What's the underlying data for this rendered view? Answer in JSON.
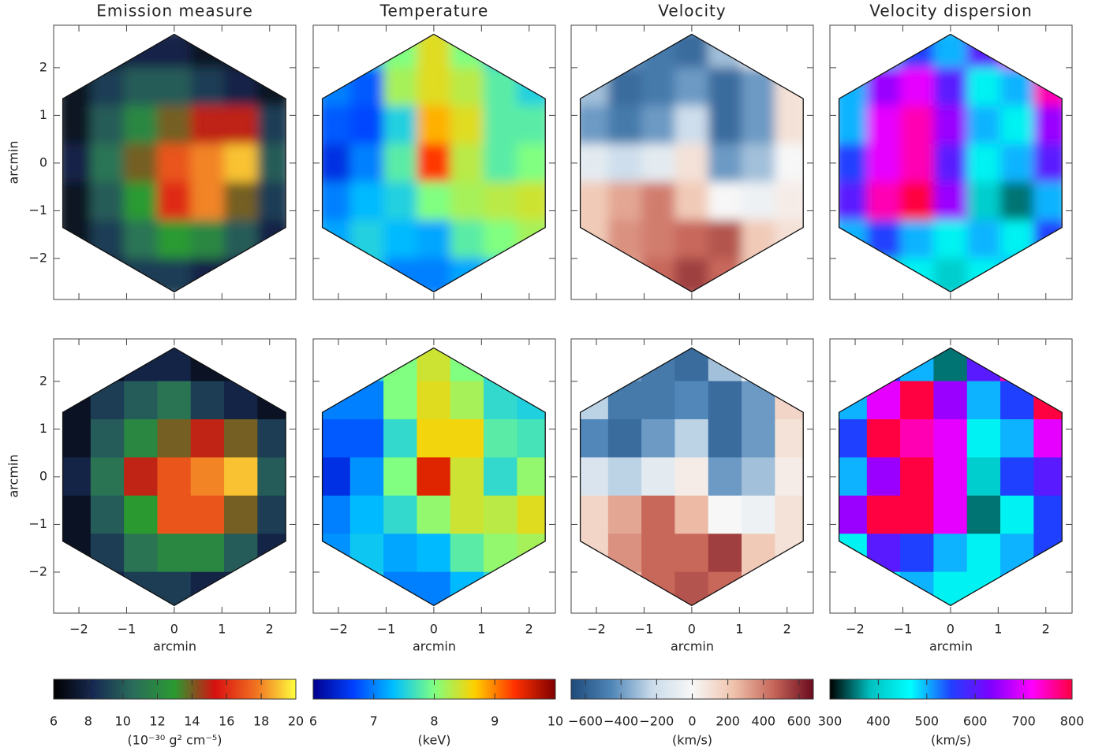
{
  "chart_data": [
    {
      "type": "heatmap",
      "title": "Emission measure",
      "ylabel": "arcmin",
      "interpolation": "smooth",
      "xticklabels": false,
      "yticklabels": true,
      "xlim": [
        -2.53,
        2.55
      ],
      "ylim": [
        -2.86,
        2.89
      ],
      "xticks": [
        {
          "value": -2,
          "label": "−2"
        },
        {
          "value": -1,
          "label": "−1"
        },
        0,
        1,
        2
      ],
      "yticks": [
        {
          "value": -2,
          "label": "−2"
        },
        {
          "value": -1,
          "label": "−1"
        },
        0,
        1,
        2
      ],
      "zlim": [
        6,
        20
      ],
      "colors": [
        "#000000",
        "#172a52",
        "#2a6e5a",
        "#2a9a30",
        "#d81010",
        "#f07020",
        "#ffff40"
      ],
      "x": [
        -2.1,
        -1.4,
        -0.7,
        0,
        0.7,
        1.4,
        2.1
      ],
      "y": [
        2.4,
        1.6,
        0.8,
        0,
        -0.8,
        -1.6,
        -2.4
      ],
      "z": [
        [
          7,
          7,
          8,
          8,
          7,
          7,
          7
        ],
        [
          7,
          9,
          10,
          10,
          9,
          8,
          7
        ],
        [
          7,
          10,
          12,
          14,
          15,
          15,
          9
        ],
        [
          8,
          11,
          14,
          17,
          18,
          19,
          10
        ],
        [
          7,
          10,
          13,
          16,
          18,
          14,
          9
        ],
        [
          7,
          9,
          11,
          13,
          12,
          10,
          8
        ],
        [
          7,
          8,
          9,
          9,
          8,
          8,
          7
        ]
      ]
    },
    {
      "type": "heatmap",
      "title": "Temperature",
      "interpolation": "smooth",
      "xticklabels": false,
      "yticklabels": false,
      "xlim": [
        -2.53,
        2.55
      ],
      "ylim": [
        -2.86,
        2.89
      ],
      "xticks": [
        {
          "value": -2,
          "label": "−2"
        },
        {
          "value": -1,
          "label": "−1"
        },
        0,
        1,
        2
      ],
      "yticks": [
        {
          "value": -2,
          "label": "−2"
        },
        {
          "value": -1,
          "label": "−1"
        },
        0,
        1,
        2
      ],
      "zlim": [
        6,
        10
      ],
      "colors": [
        "#00008f",
        "#0040ff",
        "#00c0ff",
        "#80ff80",
        "#ffd000",
        "#ff3000",
        "#800000"
      ],
      "x": [
        -2.1,
        -1.4,
        -0.7,
        0,
        0.7,
        1.4,
        2.1
      ],
      "y": [
        2.4,
        1.6,
        0.8,
        0,
        -0.8,
        -1.6,
        -2.4
      ],
      "z": [
        [
          7,
          7.5,
          8,
          8.5,
          8,
          7.5,
          7
        ],
        [
          7,
          6.8,
          8.2,
          8.5,
          8.3,
          7.8,
          7.5
        ],
        [
          6.8,
          6.7,
          7.5,
          8.8,
          8.5,
          7.8,
          7.8
        ],
        [
          6.5,
          7,
          7.8,
          9.3,
          8.3,
          7.8,
          8
        ],
        [
          7,
          7.3,
          7.5,
          8,
          8.2,
          8.3,
          8.4
        ],
        [
          7.2,
          7.5,
          7.3,
          7.2,
          7.8,
          8,
          8.2
        ],
        [
          7.5,
          7.5,
          7,
          7,
          7.2,
          7.5,
          8
        ]
      ]
    },
    {
      "type": "heatmap",
      "title": "Velocity",
      "interpolation": "smooth",
      "xticklabels": false,
      "yticklabels": false,
      "xlim": [
        -2.53,
        2.55
      ],
      "ylim": [
        -2.86,
        2.89
      ],
      "xticks": [
        {
          "value": -2,
          "label": "−2"
        },
        {
          "value": -1,
          "label": "−1"
        },
        0,
        1,
        2
      ],
      "yticks": [
        {
          "value": -2,
          "label": "−2"
        },
        {
          "value": -1,
          "label": "−1"
        },
        0,
        1,
        2
      ],
      "zlim": [
        -680,
        680
      ],
      "colors": [
        "#1d4a7a",
        "#4f86b8",
        "#c9dbea",
        "#f7f7f7",
        "#f0c4ae",
        "#c7675a",
        "#6a0a1e"
      ],
      "x": [
        -2.1,
        -1.4,
        -0.7,
        0,
        0.7,
        1.4,
        2.1
      ],
      "y": [
        2.4,
        1.6,
        0.8,
        0,
        -0.8,
        -1.6,
        -2.4
      ],
      "z": [
        [
          -300,
          -400,
          -500,
          -550,
          -300,
          0,
          100
        ],
        [
          -300,
          -550,
          -500,
          -400,
          -550,
          -400,
          100
        ],
        [
          -400,
          -500,
          -400,
          -200,
          -550,
          -400,
          100
        ],
        [
          -100,
          -200,
          -100,
          100,
          -400,
          -300,
          0
        ],
        [
          200,
          300,
          400,
          200,
          0,
          -50,
          50
        ],
        [
          200,
          350,
          400,
          450,
          500,
          200,
          100
        ],
        [
          100,
          300,
          450,
          550,
          450,
          200,
          100
        ]
      ]
    },
    {
      "type": "heatmap",
      "title": "Velocity dispersion",
      "interpolation": "smooth",
      "xticklabels": false,
      "yticklabels": false,
      "xlim": [
        -2.53,
        2.55
      ],
      "ylim": [
        -2.86,
        2.89
      ],
      "xticks": [
        {
          "value": -2,
          "label": "−2"
        },
        {
          "value": -1,
          "label": "−1"
        },
        0,
        1,
        2
      ],
      "yticks": [
        {
          "value": -2,
          "label": "−2"
        },
        {
          "value": -1,
          "label": "−1"
        },
        0,
        1,
        2
      ],
      "zlim": [
        300,
        800
      ],
      "colors": [
        "#000000",
        "#00c0c0",
        "#00ffff",
        "#2040ff",
        "#8000ff",
        "#ff00ff",
        "#ff0040"
      ],
      "x": [
        -2.1,
        -1.4,
        -0.7,
        0,
        0.7,
        1.4,
        2.1
      ],
      "y": [
        2.4,
        1.6,
        0.8,
        0,
        -0.8,
        -1.6,
        -2.4
      ],
      "z": [
        [
          450,
          500,
          550,
          500,
          600,
          700,
          650
        ],
        [
          500,
          650,
          700,
          600,
          450,
          500,
          750
        ],
        [
          500,
          700,
          750,
          650,
          500,
          450,
          650
        ],
        [
          550,
          700,
          750,
          600,
          450,
          500,
          600
        ],
        [
          600,
          750,
          800,
          650,
          400,
          350,
          500
        ],
        [
          500,
          550,
          500,
          450,
          500,
          450,
          550
        ],
        [
          450,
          400,
          450,
          400,
          450,
          500,
          500
        ]
      ]
    },
    {
      "type": "heatmap",
      "xlabel": "arcmin",
      "ylabel": "arcmin",
      "interpolation": "nearest",
      "xticklabels": true,
      "yticklabels": true,
      "xlim": [
        -2.53,
        2.55
      ],
      "ylim": [
        -2.86,
        2.89
      ],
      "xticks": [
        {
          "value": -2,
          "label": "−2"
        },
        {
          "value": -1,
          "label": "−1"
        },
        0,
        1,
        2
      ],
      "yticks": [
        {
          "value": -2,
          "label": "−2"
        },
        {
          "value": -1,
          "label": "−1"
        },
        0,
        1,
        2
      ],
      "zlim": [
        6,
        20
      ],
      "colors": [
        "#000000",
        "#172a52",
        "#2a6e5a",
        "#2a9a30",
        "#d81010",
        "#f07020",
        "#ffff40"
      ],
      "x": [
        -2.1,
        -1.4,
        -0.7,
        0,
        0.7,
        1.4,
        2.1
      ],
      "y": [
        2.4,
        1.6,
        0.8,
        0,
        -0.8,
        -1.6,
        -2.4
      ],
      "z": [
        [
          7,
          7,
          8,
          8,
          7,
          7,
          7
        ],
        [
          7,
          9,
          10,
          11,
          9,
          8,
          7
        ],
        [
          7,
          10,
          12,
          14,
          15,
          14,
          9
        ],
        [
          8,
          11,
          15,
          17,
          18,
          19,
          10
        ],
        [
          7,
          10,
          13,
          17,
          17,
          14,
          9
        ],
        [
          7,
          9,
          11,
          12,
          12,
          10,
          8
        ],
        [
          7,
          8,
          9,
          9,
          8,
          8,
          7
        ]
      ]
    },
    {
      "type": "heatmap",
      "xlabel": "arcmin",
      "interpolation": "nearest",
      "xticklabels": true,
      "yticklabels": false,
      "xlim": [
        -2.53,
        2.55
      ],
      "ylim": [
        -2.86,
        2.89
      ],
      "xticks": [
        {
          "value": -2,
          "label": "−2"
        },
        {
          "value": -1,
          "label": "−1"
        },
        0,
        1,
        2
      ],
      "yticks": [
        {
          "value": -2,
          "label": "−2"
        },
        {
          "value": -1,
          "label": "−1"
        },
        0,
        1,
        2
      ],
      "zlim": [
        6,
        10
      ],
      "colors": [
        "#00008f",
        "#0040ff",
        "#00c0ff",
        "#80ff80",
        "#ffd000",
        "#ff3000",
        "#800000"
      ],
      "x": [
        -2.1,
        -1.4,
        -0.7,
        0,
        0.7,
        1.4,
        2.1
      ],
      "y": [
        2.4,
        1.6,
        0.8,
        0,
        -0.8,
        -1.6,
        -2.4
      ],
      "z": [
        [
          7,
          7.6,
          8,
          8.4,
          8,
          7.6,
          7
        ],
        [
          7,
          7,
          8,
          8.5,
          8.2,
          7.6,
          7.5
        ],
        [
          6.8,
          6.8,
          7.6,
          8.6,
          8.6,
          7.8,
          7.7
        ],
        [
          6.5,
          7.1,
          8,
          9.5,
          8.4,
          7.6,
          8.1
        ],
        [
          7,
          7.3,
          7.6,
          8.1,
          8.4,
          8.3,
          8.5
        ],
        [
          7.1,
          7.4,
          7.2,
          7.3,
          7.8,
          8.1,
          8.2
        ],
        [
          7.4,
          7.5,
          7,
          7,
          7.3,
          7.6,
          8
        ]
      ]
    },
    {
      "type": "heatmap",
      "xlabel": "arcmin",
      "interpolation": "nearest",
      "xticklabels": true,
      "yticklabels": false,
      "xlim": [
        -2.53,
        2.55
      ],
      "ylim": [
        -2.86,
        2.89
      ],
      "xticks": [
        {
          "value": -2,
          "label": "−2"
        },
        {
          "value": -1,
          "label": "−1"
        },
        0,
        1,
        2
      ],
      "yticks": [
        {
          "value": -2,
          "label": "−2"
        },
        {
          "value": -1,
          "label": "−1"
        },
        0,
        1,
        2
      ],
      "zlim": [
        -680,
        680
      ],
      "colors": [
        "#1d4a7a",
        "#4f86b8",
        "#c9dbea",
        "#f7f7f7",
        "#f0c4ae",
        "#c7675a",
        "#6a0a1e"
      ],
      "x": [
        -2.1,
        -1.4,
        -0.7,
        0,
        0.7,
        1.4,
        2.1
      ],
      "y": [
        2.4,
        1.6,
        0.8,
        0,
        -0.8,
        -1.6,
        -2.4
      ],
      "z": [
        [
          -300,
          -400,
          -500,
          -550,
          -300,
          0,
          150
        ],
        [
          -250,
          -500,
          -500,
          -450,
          -550,
          -400,
          150
        ],
        [
          -450,
          -550,
          -400,
          -250,
          -550,
          -400,
          100
        ],
        [
          -150,
          -250,
          -100,
          50,
          -400,
          -300,
          50
        ],
        [
          150,
          300,
          450,
          250,
          0,
          -50,
          100
        ],
        [
          150,
          350,
          450,
          450,
          550,
          200,
          100
        ],
        [
          50,
          250,
          450,
          500,
          450,
          200,
          50
        ]
      ]
    },
    {
      "type": "heatmap",
      "xlabel": "arcmin",
      "interpolation": "nearest",
      "xticklabels": true,
      "yticklabels": false,
      "xlim": [
        -2.53,
        2.55
      ],
      "ylim": [
        -2.86,
        2.89
      ],
      "xticks": [
        {
          "value": -2,
          "label": "−2"
        },
        {
          "value": -1,
          "label": "−1"
        },
        0,
        1,
        2
      ],
      "yticks": [
        {
          "value": -2,
          "label": "−2"
        },
        {
          "value": -1,
          "label": "−1"
        },
        0,
        1,
        2
      ],
      "zlim": [
        300,
        800
      ],
      "colors": [
        "#000000",
        "#00c0c0",
        "#00ffff",
        "#2040ff",
        "#8000ff",
        "#ff00ff",
        "#ff0040"
      ],
      "x": [
        -2.1,
        -1.4,
        -0.7,
        0,
        0.7,
        1.4,
        2.1
      ],
      "y": [
        2.4,
        1.6,
        0.8,
        0,
        -0.8,
        -1.6,
        -2.4
      ],
      "z": [
        [
          450,
          550,
          500,
          350,
          600,
          750,
          650
        ],
        [
          500,
          700,
          800,
          650,
          500,
          550,
          800
        ],
        [
          550,
          800,
          750,
          700,
          450,
          500,
          700
        ],
        [
          500,
          650,
          800,
          700,
          400,
          550,
          600
        ],
        [
          650,
          800,
          800,
          700,
          350,
          450,
          550
        ],
        [
          450,
          600,
          550,
          500,
          450,
          500,
          550
        ],
        [
          700,
          450,
          500,
          450,
          450,
          500,
          500
        ]
      ]
    },
    {
      "type": "colorbar",
      "xlabel": "(10⁻³⁰ g² cm⁻⁵)",
      "xlim": [
        6,
        20
      ],
      "xticks": [
        6,
        8,
        10,
        12,
        14,
        16,
        18,
        20
      ],
      "colors": [
        "#000000",
        "#172a52",
        "#2a6e5a",
        "#2a9a30",
        "#d81010",
        "#f07020",
        "#ffff40"
      ]
    },
    {
      "type": "colorbar",
      "xlabel": "(keV)",
      "xlim": [
        6,
        10
      ],
      "xticks": [
        6,
        7,
        8,
        9,
        10
      ],
      "colors": [
        "#00008f",
        "#0040ff",
        "#00c0ff",
        "#80ff80",
        "#ffd000",
        "#ff3000",
        "#800000"
      ]
    },
    {
      "type": "colorbar",
      "xlabel": "(km/s)",
      "xlim": [
        -680,
        680
      ],
      "xticks": [
        {
          "value": -600,
          "label": "−600"
        },
        {
          "value": -400,
          "label": "−400"
        },
        {
          "value": -200,
          "label": "−200"
        },
        0,
        200,
        400,
        600
      ],
      "colors": [
        "#1d4a7a",
        "#4f86b8",
        "#c9dbea",
        "#f7f7f7",
        "#f0c4ae",
        "#c7675a",
        "#6a0a1e"
      ]
    },
    {
      "type": "colorbar",
      "xlabel": "(km/s)",
      "xlim": [
        300,
        800
      ],
      "xticks": [
        300,
        400,
        500,
        600,
        700,
        800
      ],
      "colors": [
        "#000000",
        "#00c0c0",
        "#00ffff",
        "#2040ff",
        "#8000ff",
        "#ff00ff",
        "#ff0040"
      ]
    }
  ]
}
